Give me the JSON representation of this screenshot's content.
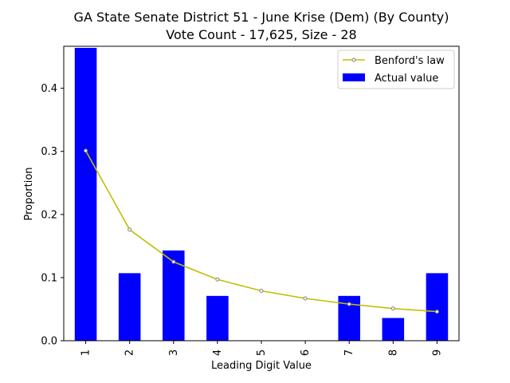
{
  "chart_data": {
    "type": "bar",
    "title": "GA State Senate District 51 - June Krise (Dem) (By County)",
    "subtitle": "Vote Count - 17,625, Size - 28",
    "xlabel": "Leading Digit Value",
    "ylabel": "Proportion",
    "categories": [
      "1",
      "2",
      "3",
      "4",
      "5",
      "6",
      "7",
      "8",
      "9"
    ],
    "ylim": [
      0,
      0.4665
    ],
    "yticks": [
      "0.0",
      "0.1",
      "0.2",
      "0.3",
      "0.4"
    ],
    "series": [
      {
        "name": "Actual value",
        "kind": "bar",
        "color": "#0000ff",
        "values": [
          0.464,
          0.107,
          0.143,
          0.071,
          0.0,
          0.0,
          0.071,
          0.036,
          0.107
        ]
      },
      {
        "name": "Benford's law",
        "kind": "line",
        "color": "#bfbf00",
        "marker_color": "#808080",
        "values": [
          0.301,
          0.176,
          0.125,
          0.097,
          0.079,
          0.067,
          0.058,
          0.051,
          0.046
        ]
      }
    ],
    "legend": {
      "position": "top-right"
    },
    "grid": false
  }
}
